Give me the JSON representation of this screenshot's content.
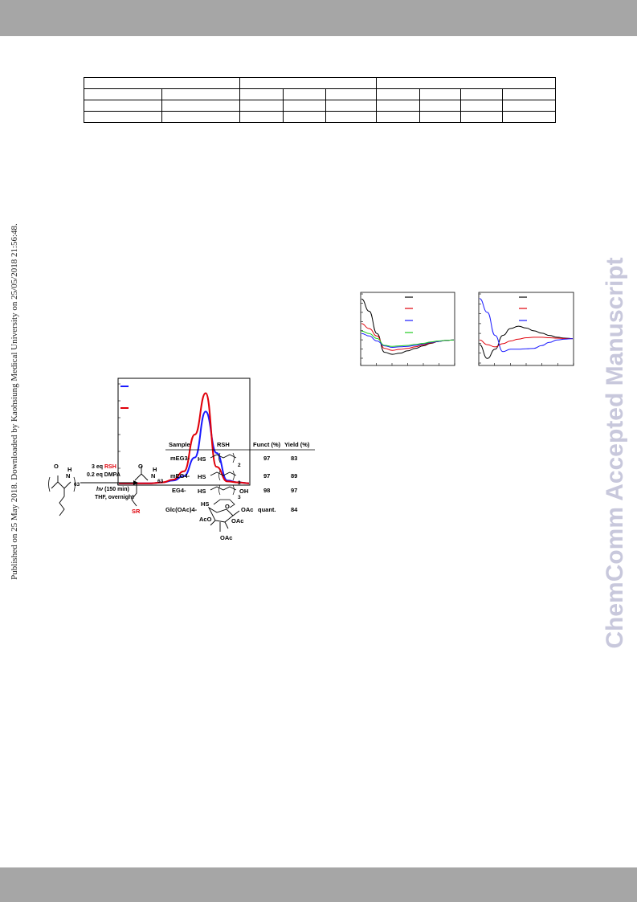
{
  "side_notice": "Published on 25 May 2018. Downloaded by Kaohsiung Medical University on 25/05/2018 21:56:48.",
  "watermark": "ChemComm Accepted Manuscript",
  "colors": {
    "bar": "#a6a6a6",
    "watermark": "#c8c8dc",
    "red": "#e0000a",
    "blue": "#1a1aff",
    "green": "#22cc22",
    "black": "#000000"
  },
  "scheme": {
    "reagent_eq": "3 eq",
    "reagent_rsh": "RSH",
    "catalyst": "0.2 eq DMPA",
    "light_symbol": "hν",
    "light_time": "(150 min)",
    "solvent": "THF, overnight",
    "dp": "63",
    "product_group": "SR",
    "o_label": "O",
    "nh_label": "N",
    "h_label": "H"
  },
  "results_table": {
    "headers": [
      "Sample",
      "RSH",
      "Funct (%)",
      "Yield (%)"
    ],
    "rows": [
      {
        "sample": "mEG3-",
        "rsh": "HS",
        "rsh_sub": "2",
        "funct": "97",
        "yield": "83"
      },
      {
        "sample": "mEG4-",
        "rsh": "HS",
        "rsh_sub": "3",
        "funct": "97",
        "yield": "89"
      },
      {
        "sample": "EG4-",
        "rsh": "HS",
        "rsh_end": "OH",
        "rsh_sub": "3",
        "funct": "98",
        "yield": "97"
      },
      {
        "sample": "Glc(OAc)4-",
        "rsh": "HS",
        "funct": "quant.",
        "yield": "84"
      }
    ],
    "glc_labels": {
      "oac1": "OAc",
      "aco": "AcO",
      "oac2": "OAc",
      "oac3": "OAc",
      "ring_o": "O"
    }
  },
  "chart_data": [
    {
      "type": "line",
      "title": "",
      "xlabel": "",
      "ylabel": "",
      "x": [
        0,
        50,
        100,
        150,
        200,
        250,
        300,
        350,
        400,
        450,
        500,
        550,
        600
      ],
      "series": [
        {
          "color": "#1a1aff",
          "values": [
            2,
            2,
            2,
            2,
            3,
            5,
            10,
            30,
            80,
            35,
            5,
            3,
            2
          ]
        },
        {
          "color": "#e0000a",
          "values": [
            2,
            2,
            2,
            2,
            3,
            6,
            15,
            55,
            100,
            20,
            4,
            3,
            2
          ]
        }
      ],
      "legend": "top-left",
      "ylim": [
        0,
        110
      ]
    },
    {
      "type": "line",
      "title": "",
      "xlabel": "",
      "ylabel": "",
      "x": [
        0,
        1,
        2,
        3,
        4,
        5,
        6,
        7,
        8,
        9,
        10,
        11,
        12
      ],
      "series": [
        {
          "color": "#000000",
          "values": [
            80,
            55,
            10,
            -28,
            -32,
            -30,
            -25,
            -20,
            -15,
            -10,
            -6,
            -4,
            -3
          ]
        },
        {
          "color": "#e0000a",
          "values": [
            30,
            20,
            5,
            -20,
            -24,
            -22,
            -20,
            -17,
            -13,
            -9,
            -6,
            -4,
            -3
          ]
        },
        {
          "color": "#1a1aff",
          "values": [
            10,
            5,
            -5,
            -15,
            -18,
            -17,
            -16,
            -14,
            -11,
            -8,
            -6,
            -4,
            -3
          ]
        },
        {
          "color": "#22cc22",
          "values": [
            15,
            10,
            0,
            -14,
            -16,
            -15,
            -14,
            -12,
            -10,
            -7,
            -5,
            -4,
            -3
          ]
        }
      ],
      "legend": "top-right",
      "ylim": [
        -40,
        90
      ]
    },
    {
      "type": "line",
      "title": "",
      "xlabel": "",
      "ylabel": "",
      "x": [
        0,
        1,
        2,
        3,
        4,
        5,
        6,
        7,
        8,
        9,
        10,
        11,
        12
      ],
      "series": [
        {
          "color": "#000000",
          "values": [
            -10,
            -40,
            -20,
            10,
            25,
            30,
            26,
            20,
            15,
            10,
            6,
            4,
            3
          ]
        },
        {
          "color": "#e0000a",
          "values": [
            0,
            -10,
            -15,
            -8,
            -2,
            2,
            5,
            6,
            6,
            5,
            4,
            3,
            3
          ]
        },
        {
          "color": "#1a1aff",
          "values": [
            90,
            60,
            10,
            -25,
            -20,
            -20,
            -19,
            -18,
            -12,
            -5,
            0,
            2,
            3
          ]
        }
      ],
      "legend": "top-right",
      "ylim": [
        -50,
        100
      ]
    }
  ]
}
